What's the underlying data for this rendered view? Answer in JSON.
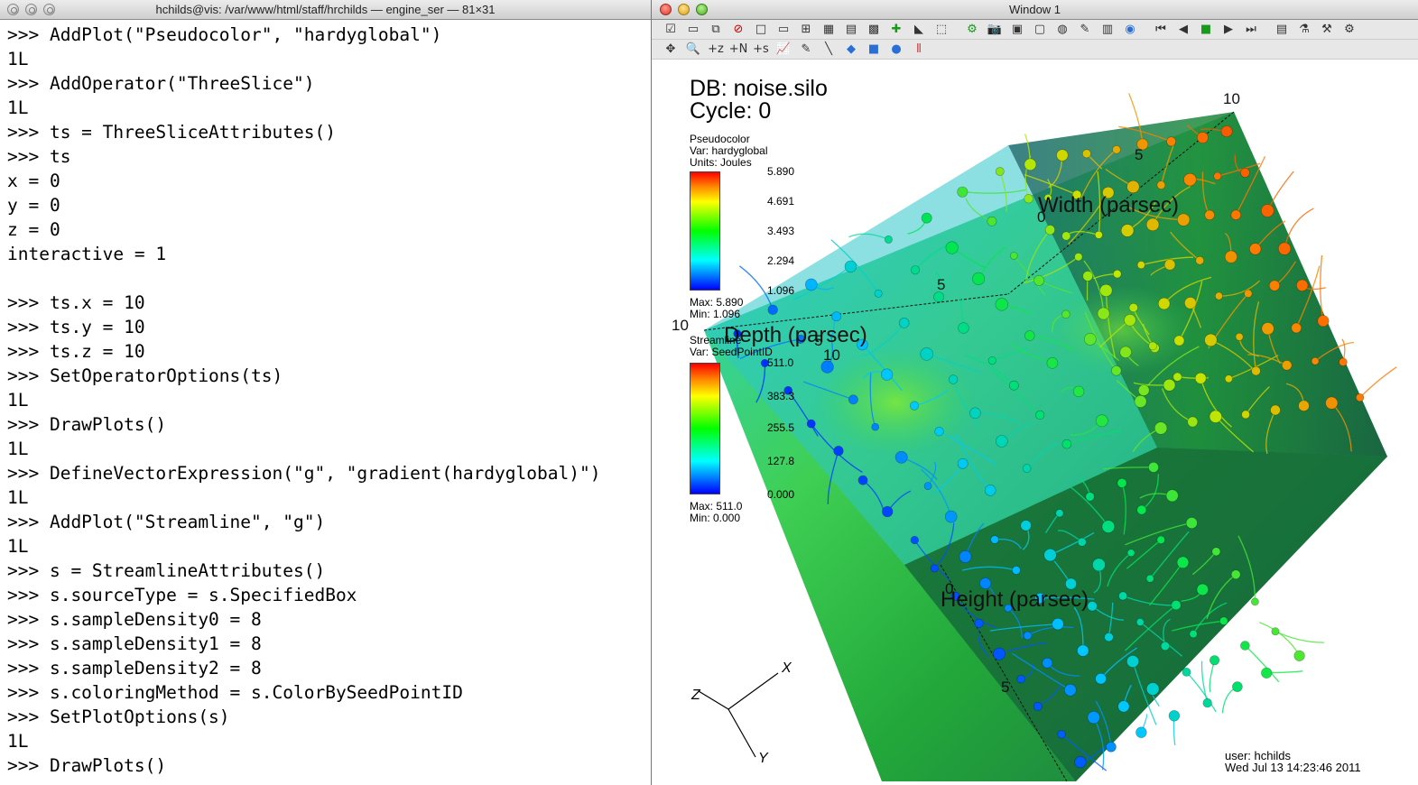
{
  "terminal": {
    "title": "hchilds@vis: /var/www/html/staff/hrchilds — engine_ser — 81×31",
    "lines": [
      ">>> AddPlot(\"Pseudocolor\", \"hardyglobal\")",
      "1L",
      ">>> AddOperator(\"ThreeSlice\")",
      "1L",
      ">>> ts = ThreeSliceAttributes()",
      ">>> ts",
      "x = 0",
      "y = 0",
      "z = 0",
      "interactive = 1",
      "",
      ">>> ts.x = 10",
      ">>> ts.y = 10",
      ">>> ts.z = 10",
      ">>> SetOperatorOptions(ts)",
      "1L",
      ">>> DrawPlots()",
      "1L",
      ">>> DefineVectorExpression(\"g\", \"gradient(hardyglobal)\")",
      "1L",
      ">>> AddPlot(\"Streamline\", \"g\")",
      "1L",
      ">>> s = StreamlineAttributes()",
      ">>> s.sourceType = s.SpecifiedBox",
      ">>> s.sampleDensity0 = 8",
      ">>> s.sampleDensity1 = 8",
      ">>> s.sampleDensity2 = 8",
      ">>> s.coloringMethod = s.ColorBySeedPointID",
      ">>> SetPlotOptions(s)",
      "1L",
      ">>> DrawPlots()"
    ]
  },
  "visit": {
    "title": "Window 1",
    "db_line": "DB: noise.silo",
    "cycle_line": "Cycle: 0",
    "legend1": {
      "plot": "Pseudocolor",
      "var": "Var: hardyglobal",
      "units": "Units: Joules",
      "ticks": [
        "5.890",
        "4.691",
        "3.493",
        "2.294",
        "1.096"
      ],
      "max": "Max: 5.890",
      "min": "Min: 1.096"
    },
    "legend2": {
      "plot": "Streamline",
      "var": "Var: SeedPointID",
      "ticks": [
        "511.0",
        "383.3",
        "255.5",
        "127.8",
        "0.000"
      ],
      "max": "Max: 511.0",
      "min": "Min: 0.000"
    },
    "axes": {
      "width": "Width (parsec)",
      "depth": "Depth (parsec)",
      "height": "Height (parsec)",
      "nums": [
        "10",
        "5",
        "0",
        "5",
        "10",
        "5",
        "10",
        "0",
        "5"
      ]
    },
    "triad": {
      "x": "X",
      "y": "Y",
      "z": "Z"
    },
    "user": "user: hchilds",
    "date": "Wed Jul 13 14:23:46 2011"
  }
}
